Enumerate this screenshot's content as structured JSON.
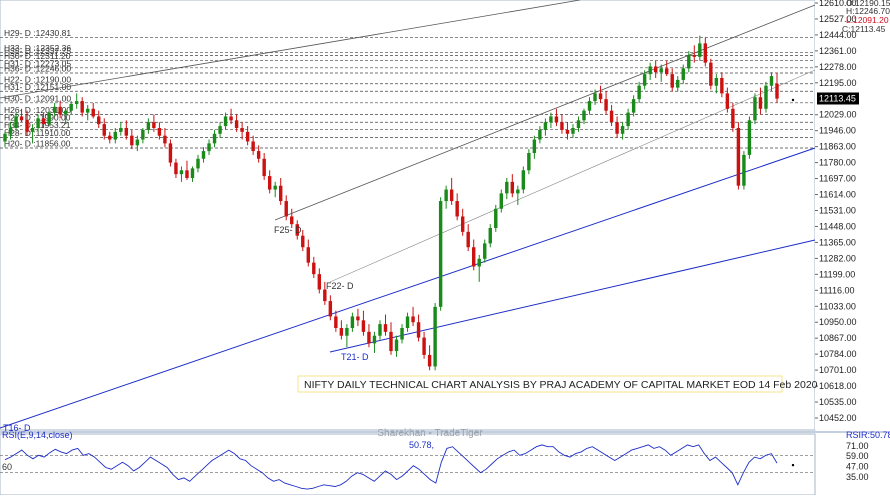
{
  "chart_data": {
    "type": "candlestick",
    "title": "NIFTY DAILY TECHNICAL CHART ANALYSIS BY PRAJ ACADEMY OF CAPITAL MARKET EOD 14 Feb 2020",
    "watermark": "Sharekhan - TradeTiger",
    "ylim": [
      10370,
      12650
    ],
    "y_ticks": [
      "12610.00",
      "12527.00",
      "12444.00",
      "12361.00",
      "12278.00",
      "12195.00",
      "12113.45",
      "12029.00",
      "11946.00",
      "11863.00",
      "11780.00",
      "11697.00",
      "11614.00",
      "11531.00",
      "11448.00",
      "11365.00",
      "11282.00",
      "11199.00",
      "11116.00",
      "11033.00",
      "10950.00",
      "10867.00",
      "10784.00",
      "10701.00",
      "10618.00",
      "10535.00",
      "10452.00"
    ],
    "last_price": 12113.45,
    "ohlc_readout": {
      "o": "O:12190.15",
      "h": "H:12246.70",
      "l": "L:12091.20",
      "c": "C:12113.45"
    },
    "levels": [
      {
        "label": "H29- D :12430.81",
        "value": 12430.81
      },
      {
        "label": "H33- D :12352.36",
        "value": 12352.36
      },
      {
        "label": "H35- D :12337.75",
        "value": 12337.75
      },
      {
        "label": "H30- D :12311.20",
        "value": 12311.2
      },
      {
        "label": "H31- D :12273.05",
        "value": 12273.05
      },
      {
        "label": "H36- D :12246.00",
        "value": 12246.0
      },
      {
        "label": "H22- D :12190.00",
        "value": 12190.0
      },
      {
        "label": "H31- D :12151.00",
        "value": 12151.0
      },
      {
        "label": "H30- D :12091.00",
        "value": 12091.0
      },
      {
        "label": "H26- D :12031.00",
        "value": 12031.0
      },
      {
        "label": "H27- D :11990.00",
        "value": 11990.0
      },
      {
        "label": "H34- D :11953.21",
        "value": 11953.21
      },
      {
        "label": "H28- D :11910.00",
        "value": 11910.0
      },
      {
        "label": "H20- D :11856.00",
        "value": 11856.0
      }
    ],
    "annotations": [
      "F25- D",
      "F22- D",
      "T21- D",
      "T16- D"
    ],
    "candles": [
      [
        11890,
        11940,
        11860,
        11930
      ],
      [
        11930,
        11990,
        11900,
        11960
      ],
      [
        11960,
        12040,
        11950,
        12020
      ],
      [
        12020,
        12060,
        11990,
        12000
      ],
      [
        12000,
        12050,
        11920,
        11940
      ],
      [
        11940,
        11980,
        11880,
        11960
      ],
      [
        11960,
        12030,
        11940,
        12010
      ],
      [
        12010,
        12040,
        11960,
        11980
      ],
      [
        11980,
        12050,
        11970,
        12040
      ],
      [
        12040,
        12090,
        12020,
        12070
      ],
      [
        12070,
        12100,
        12010,
        12030
      ],
      [
        12030,
        12060,
        11980,
        12050
      ],
      [
        12050,
        12100,
        12030,
        12085
      ],
      [
        12085,
        12140,
        12060,
        12100
      ],
      [
        12100,
        12120,
        12020,
        12040
      ],
      [
        12040,
        12080,
        12000,
        12060
      ],
      [
        12060,
        12090,
        12010,
        12020
      ],
      [
        12020,
        12050,
        11960,
        11980
      ],
      [
        11980,
        12010,
        11900,
        11920
      ],
      [
        11920,
        11940,
        11880,
        11900
      ],
      [
        11900,
        11960,
        11880,
        11940
      ],
      [
        11940,
        11990,
        11920,
        11960
      ],
      [
        11960,
        12000,
        11900,
        11920
      ],
      [
        11920,
        11950,
        11850,
        11870
      ],
      [
        11870,
        11920,
        11840,
        11900
      ],
      [
        11900,
        11960,
        11880,
        11950
      ],
      [
        11950,
        12010,
        11930,
        11990
      ],
      [
        11990,
        12030,
        11940,
        11960
      ],
      [
        11960,
        11990,
        11900,
        11920
      ],
      [
        11920,
        11960,
        11860,
        11880
      ],
      [
        11880,
        11900,
        11760,
        11780
      ],
      [
        11780,
        11800,
        11700,
        11720
      ],
      [
        11720,
        11760,
        11680,
        11740
      ],
      [
        11740,
        11790,
        11690,
        11700
      ],
      [
        11700,
        11760,
        11680,
        11750
      ],
      [
        11750,
        11820,
        11730,
        11800
      ],
      [
        11800,
        11860,
        11780,
        11840
      ],
      [
        11840,
        11900,
        11820,
        11880
      ],
      [
        11880,
        11950,
        11860,
        11930
      ],
      [
        11930,
        11990,
        11910,
        11970
      ],
      [
        11970,
        12040,
        11950,
        12020
      ],
      [
        12020,
        12060,
        11980,
        12000
      ],
      [
        12000,
        12030,
        11940,
        11960
      ],
      [
        11960,
        11990,
        11900,
        11940
      ],
      [
        11940,
        11970,
        11870,
        11890
      ],
      [
        11890,
        11920,
        11820,
        11840
      ],
      [
        11840,
        11870,
        11780,
        11800
      ],
      [
        11800,
        11830,
        11690,
        11710
      ],
      [
        11710,
        11740,
        11620,
        11640
      ],
      [
        11640,
        11680,
        11600,
        11660
      ],
      [
        11660,
        11700,
        11560,
        11580
      ],
      [
        11580,
        11610,
        11480,
        11500
      ],
      [
        11500,
        11540,
        11440,
        11460
      ],
      [
        11460,
        11480,
        11380,
        11400
      ],
      [
        11400,
        11430,
        11320,
        11340
      ],
      [
        11340,
        11380,
        11240,
        11260
      ],
      [
        11260,
        11290,
        11180,
        11200
      ],
      [
        11200,
        11230,
        11100,
        11120
      ],
      [
        11120,
        11160,
        11040,
        11060
      ],
      [
        11060,
        11090,
        10960,
        10980
      ],
      [
        10980,
        11010,
        10900,
        10920
      ],
      [
        10920,
        10960,
        10860,
        10880
      ],
      [
        10880,
        10940,
        10820,
        10920
      ],
      [
        10920,
        11000,
        10900,
        10980
      ],
      [
        10980,
        11020,
        10930,
        10960
      ],
      [
        10960,
        11010,
        10880,
        10900
      ],
      [
        10900,
        10940,
        10820,
        10840
      ],
      [
        10840,
        10900,
        10790,
        10880
      ],
      [
        10880,
        10960,
        10860,
        10940
      ],
      [
        10940,
        10990,
        10880,
        10900
      ],
      [
        10900,
        10950,
        10780,
        10800
      ],
      [
        10800,
        10880,
        10770,
        10860
      ],
      [
        10860,
        10940,
        10840,
        10920
      ],
      [
        10920,
        11000,
        10900,
        10980
      ],
      [
        10980,
        11030,
        10930,
        10950
      ],
      [
        10950,
        10990,
        10850,
        10870
      ],
      [
        10870,
        10900,
        10760,
        10780
      ],
      [
        10780,
        10830,
        10700,
        10720
      ],
      [
        10720,
        11050,
        10700,
        11030
      ],
      [
        11030,
        11600,
        11010,
        11580
      ],
      [
        11580,
        11660,
        11540,
        11640
      ],
      [
        11640,
        11700,
        11560,
        11580
      ],
      [
        11580,
        11620,
        11480,
        11500
      ],
      [
        11500,
        11540,
        11400,
        11420
      ],
      [
        11420,
        11460,
        11320,
        11340
      ],
      [
        11340,
        11380,
        11220,
        11240
      ],
      [
        11240,
        11300,
        11160,
        11280
      ],
      [
        11280,
        11380,
        11260,
        11360
      ],
      [
        11360,
        11460,
        11340,
        11440
      ],
      [
        11440,
        11560,
        11420,
        11540
      ],
      [
        11540,
        11640,
        11520,
        11620
      ],
      [
        11620,
        11700,
        11590,
        11680
      ],
      [
        11680,
        11720,
        11600,
        11620
      ],
      [
        11620,
        11660,
        11560,
        11640
      ],
      [
        11640,
        11760,
        11620,
        11740
      ],
      [
        11740,
        11850,
        11720,
        11830
      ],
      [
        11830,
        11920,
        11800,
        11900
      ],
      [
        11900,
        11970,
        11880,
        11950
      ],
      [
        11950,
        12010,
        11920,
        11990
      ],
      [
        11990,
        12040,
        11960,
        12020
      ],
      [
        12020,
        12060,
        11970,
        11990
      ],
      [
        11990,
        12030,
        11930,
        11950
      ],
      [
        11950,
        11990,
        11900,
        11930
      ],
      [
        11930,
        11980,
        11910,
        11960
      ],
      [
        11960,
        12020,
        11940,
        12000
      ],
      [
        12000,
        12060,
        11980,
        12050
      ],
      [
        12050,
        12120,
        12030,
        12100
      ],
      [
        12100,
        12160,
        12080,
        12140
      ],
      [
        12140,
        12180,
        12090,
        12110
      ],
      [
        12110,
        12150,
        12030,
        12050
      ],
      [
        12050,
        12080,
        11970,
        11990
      ],
      [
        11990,
        12020,
        11910,
        11930
      ],
      [
        11930,
        11990,
        11900,
        11970
      ],
      [
        11970,
        12060,
        11950,
        12040
      ],
      [
        12040,
        12130,
        12020,
        12110
      ],
      [
        12110,
        12200,
        12090,
        12180
      ],
      [
        12180,
        12260,
        12160,
        12240
      ],
      [
        12240,
        12300,
        12210,
        12280
      ],
      [
        12280,
        12310,
        12220,
        12250
      ],
      [
        12250,
        12290,
        12200,
        12270
      ],
      [
        12270,
        12310,
        12230,
        12240
      ],
      [
        12240,
        12270,
        12150,
        12170
      ],
      [
        12170,
        12230,
        12150,
        12210
      ],
      [
        12210,
        12290,
        12190,
        12270
      ],
      [
        12270,
        12360,
        12250,
        12340
      ],
      [
        12340,
        12390,
        12300,
        12330
      ],
      [
        12330,
        12440,
        12310,
        12400
      ],
      [
        12400,
        12430,
        12280,
        12300
      ],
      [
        12300,
        12320,
        12160,
        12180
      ],
      [
        12180,
        12240,
        12140,
        12220
      ],
      [
        12220,
        12250,
        12120,
        12140
      ],
      [
        12140,
        12170,
        12040,
        12060
      ],
      [
        12060,
        12090,
        11940,
        11960
      ],
      [
        11960,
        11990,
        11640,
        11660
      ],
      [
        11660,
        11840,
        11640,
        11820
      ],
      [
        11820,
        12020,
        11800,
        12000
      ],
      [
        12000,
        12140,
        11980,
        12120
      ],
      [
        12120,
        12170,
        12030,
        12060
      ],
      [
        12060,
        12200,
        12040,
        12180
      ],
      [
        12180,
        12250,
        12150,
        12230
      ],
      [
        12190,
        12247,
        12091,
        12113
      ]
    ],
    "rsi": {
      "label": "RSI(E,9,14,close)",
      "value_label": "50.78,",
      "right_label": "RSIR:50.78",
      "ylim": [
        20,
        80
      ],
      "ticks": [
        "71.00",
        "59.00",
        "47.00",
        "35.00"
      ],
      "left_tick": "60",
      "values": [
        55,
        58,
        62,
        66,
        60,
        56,
        60,
        58,
        63,
        67,
        64,
        62,
        66,
        68,
        60,
        62,
        58,
        52,
        46,
        44,
        48,
        52,
        48,
        42,
        46,
        52,
        58,
        54,
        50,
        46,
        38,
        32,
        34,
        30,
        36,
        42,
        48,
        54,
        58,
        62,
        66,
        62,
        56,
        54,
        48,
        44,
        40,
        34,
        30,
        32,
        28,
        26,
        24,
        22,
        21,
        22,
        24,
        26,
        25,
        24,
        26,
        30,
        36,
        40,
        38,
        34,
        30,
        36,
        42,
        38,
        32,
        36,
        42,
        48,
        44,
        38,
        32,
        28,
        52,
        68,
        70,
        64,
        58,
        52,
        46,
        40,
        44,
        50,
        56,
        60,
        64,
        66,
        60,
        62,
        66,
        70,
        72,
        70,
        70,
        64,
        60,
        58,
        62,
        64,
        68,
        70,
        66,
        62,
        58,
        54,
        58,
        62,
        66,
        68,
        70,
        72,
        68,
        70,
        66,
        60,
        64,
        68,
        72,
        70,
        72,
        62,
        54,
        58,
        52,
        46,
        40,
        26,
        40,
        52,
        58,
        56,
        60,
        62,
        51
      ]
    }
  }
}
